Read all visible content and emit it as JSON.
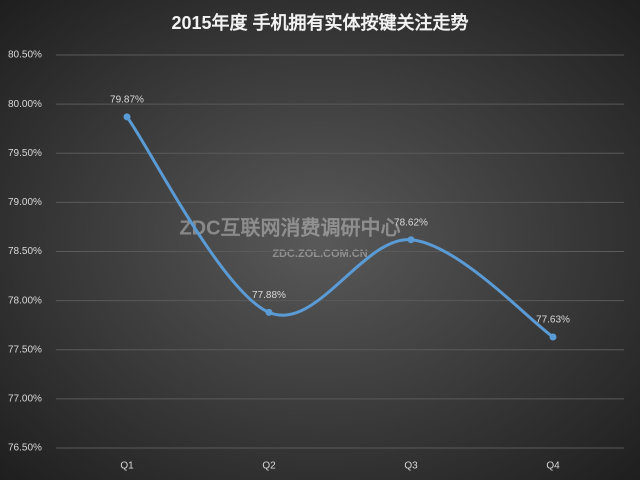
{
  "chart_data": {
    "type": "line",
    "title": "2015年度 手机拥有实体按键关注走势",
    "watermark": [
      "ZDC互联网消费调研中心",
      "ZDC.ZOL.COM.CN"
    ],
    "categories": [
      "Q1",
      "Q2",
      "Q3",
      "Q4"
    ],
    "values": [
      79.87,
      77.88,
      78.62,
      77.63
    ],
    "value_labels": [
      "79.87%",
      "77.88%",
      "78.62%",
      "77.63%"
    ],
    "color": "#5b9bd5",
    "smooth": true,
    "grid": true,
    "ylim": [
      76.5,
      80.5
    ],
    "yticks": [
      {
        "value": 76.5,
        "label": "76.50%"
      },
      {
        "value": 77,
        "label": "77.00%"
      },
      {
        "value": 77.5,
        "label": "77.50%"
      },
      {
        "value": 78,
        "label": "78.00%"
      },
      {
        "value": 78.5,
        "label": "78.50%"
      },
      {
        "value": 79,
        "label": "79.00%"
      },
      {
        "value": 79.5,
        "label": "79.50%"
      },
      {
        "value": 80,
        "label": "80.00%"
      },
      {
        "value": 80.5,
        "label": "80.50%"
      }
    ]
  }
}
